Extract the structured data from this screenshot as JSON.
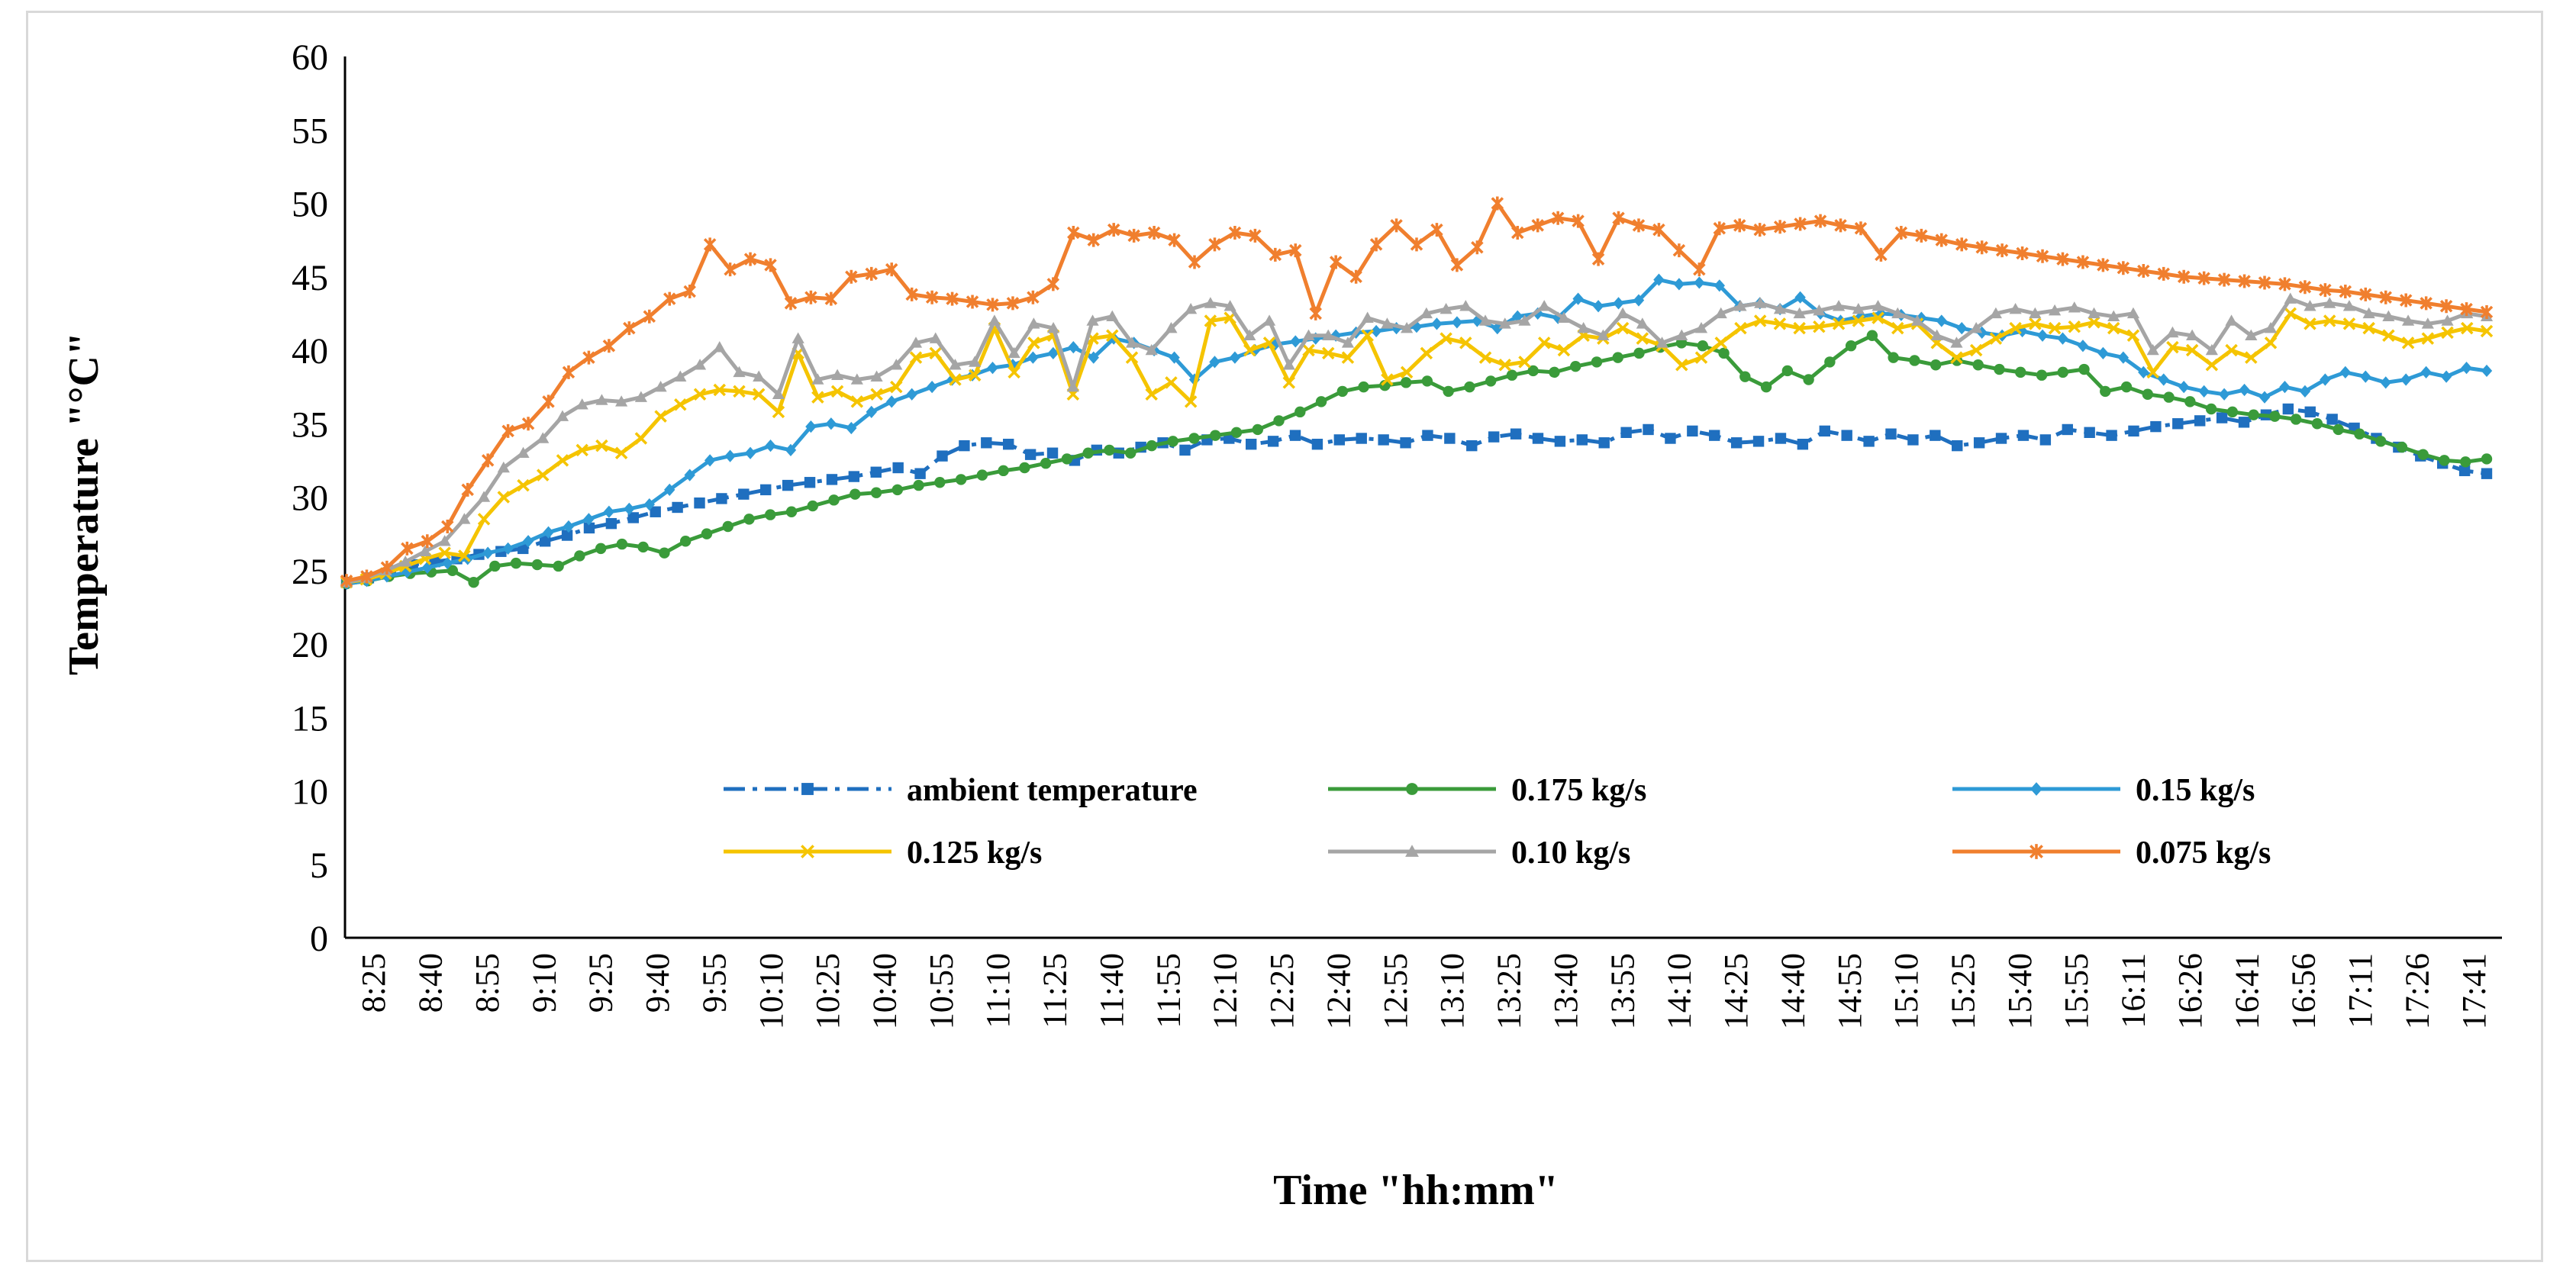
{
  "chart_data": {
    "type": "line",
    "title": "",
    "xlabel": "Time \"hh:mm\"",
    "ylabel": "Temperature \"°C\"",
    "ylim": [
      0,
      60
    ],
    "yticks": [
      0,
      5,
      10,
      15,
      20,
      25,
      30,
      35,
      40,
      45,
      50,
      55,
      60
    ],
    "grid": false,
    "legend_position": "bottom-center",
    "x_tick_labels": [
      "8:25",
      "8:40",
      "8:55",
      "9:10",
      "9:25",
      "9:40",
      "9:55",
      "10:10",
      "10:25",
      "10:40",
      "10:55",
      "11:10",
      "11:25",
      "11:40",
      "11:55",
      "12:10",
      "12:25",
      "12:40",
      "12:55",
      "13:10",
      "13:25",
      "13:40",
      "13:55",
      "14:10",
      "14:25",
      "14:40",
      "14:55",
      "15:10",
      "15:25",
      "15:40",
      "15:55",
      "16:11",
      "16:26",
      "16:41",
      "16:56",
      "17:11",
      "17:26",
      "17:41"
    ],
    "series": [
      {
        "name": "ambient temperature",
        "color": "#1f6fbf",
        "marker": "square",
        "dash": "dashdot",
        "values": [
          24.2,
          24.5,
          25.0,
          25.4,
          25.6,
          25.8,
          26.1,
          26.3,
          26.5,
          27.0,
          27.4,
          27.9,
          28.2,
          28.6,
          29.0,
          29.3,
          29.6,
          29.9,
          30.2,
          30.5,
          30.8,
          31.0,
          31.2,
          31.4,
          31.7,
          32.0,
          31.6,
          32.8,
          33.5,
          33.7,
          33.6,
          32.9,
          33.0,
          32.5,
          33.2,
          33.0,
          33.4,
          33.7,
          33.2,
          33.9,
          34.0,
          33.6,
          33.8,
          34.2,
          33.6,
          33.9,
          34.0,
          33.9,
          33.7,
          34.2,
          34.0,
          33.5,
          34.1,
          34.3,
          34.0,
          33.8,
          33.9,
          33.7,
          34.4,
          34.6,
          34.0,
          34.5,
          34.2,
          33.7,
          33.8,
          34.0,
          33.6,
          34.5,
          34.2,
          33.8,
          34.3,
          33.9,
          34.2,
          33.5,
          33.7,
          34.0,
          34.2,
          33.9,
          34.6,
          34.4,
          34.2,
          34.5,
          34.8,
          35.0,
          35.2,
          35.4,
          35.1,
          35.6,
          36.0,
          35.8,
          35.3,
          34.7,
          34.0,
          33.4,
          32.8,
          32.3,
          31.8,
          31.6
        ]
      },
      {
        "name": "0.175 kg/s",
        "color": "#3a9b3a",
        "marker": "circle",
        "dash": "solid",
        "values": [
          24.1,
          24.3,
          24.6,
          24.8,
          24.9,
          25.0,
          24.2,
          25.3,
          25.5,
          25.4,
          25.3,
          26.0,
          26.5,
          26.8,
          26.6,
          26.2,
          27.0,
          27.5,
          28.0,
          28.5,
          28.8,
          29.0,
          29.4,
          29.8,
          30.2,
          30.3,
          30.5,
          30.8,
          31.0,
          31.2,
          31.5,
          31.8,
          32.0,
          32.3,
          32.6,
          33.0,
          33.2,
          33.0,
          33.5,
          33.8,
          34.0,
          34.2,
          34.4,
          34.6,
          35.2,
          35.8,
          36.5,
          37.2,
          37.5,
          37.6,
          37.8,
          37.9,
          37.2,
          37.5,
          37.9,
          38.3,
          38.6,
          38.5,
          38.9,
          39.2,
          39.5,
          39.8,
          40.2,
          40.5,
          40.3,
          39.8,
          38.2,
          37.5,
          38.6,
          38.0,
          39.2,
          40.3,
          41.0,
          39.5,
          39.3,
          39.0,
          39.3,
          39.0,
          38.7,
          38.5,
          38.3,
          38.5,
          38.7,
          37.2,
          37.5,
          37.0,
          36.8,
          36.5,
          36.0,
          35.8,
          35.6,
          35.5,
          35.3,
          35.0,
          34.6,
          34.3,
          33.8,
          33.4,
          32.9,
          32.5,
          32.4,
          32.6
        ]
      },
      {
        "name": "0.15 kg/s",
        "color": "#2e9ad6",
        "marker": "diamond",
        "dash": "solid",
        "values": [
          24.1,
          24.3,
          24.6,
          24.9,
          25.2,
          25.5,
          25.8,
          26.2,
          26.5,
          27.0,
          27.6,
          28.0,
          28.5,
          29.0,
          29.2,
          29.5,
          30.5,
          31.5,
          32.5,
          32.8,
          33.0,
          33.5,
          33.2,
          34.8,
          35.0,
          34.7,
          35.8,
          36.5,
          37.0,
          37.5,
          38.0,
          38.3,
          38.8,
          39.0,
          39.5,
          39.8,
          40.2,
          39.5,
          40.8,
          40.5,
          40.0,
          39.5,
          38.0,
          39.2,
          39.5,
          40.0,
          40.4,
          40.6,
          40.8,
          41.0,
          41.2,
          41.3,
          41.5,
          41.6,
          41.8,
          41.9,
          42.0,
          41.5,
          42.3,
          42.5,
          42.2,
          43.5,
          43.0,
          43.2,
          43.4,
          44.8,
          44.5,
          44.6,
          44.4,
          43.0,
          43.2,
          42.8,
          43.6,
          42.5,
          42.0,
          42.3,
          42.5,
          42.4,
          42.2,
          42.0,
          41.5,
          41.2,
          41.0,
          41.3,
          41.0,
          40.8,
          40.3,
          39.8,
          39.5,
          38.5,
          38.0,
          37.5,
          37.2,
          37.0,
          37.3,
          36.8,
          37.5,
          37.2,
          38.0,
          38.5,
          38.2,
          37.8,
          38.0,
          38.5,
          38.2,
          38.8,
          38.6
        ]
      },
      {
        "name": "0.125 kg/s",
        "color": "#f5c400",
        "marker": "x",
        "dash": "solid",
        "values": [
          24.2,
          24.4,
          24.8,
          25.3,
          25.8,
          26.2,
          26.0,
          28.5,
          30.0,
          30.8,
          31.5,
          32.5,
          33.2,
          33.5,
          33.0,
          34.0,
          35.5,
          36.3,
          37.0,
          37.3,
          37.2,
          37.0,
          35.8,
          39.8,
          36.8,
          37.2,
          36.5,
          37.0,
          37.5,
          39.5,
          39.8,
          38.0,
          38.3,
          41.5,
          38.5,
          40.5,
          41.0,
          37.0,
          40.8,
          41.0,
          39.5,
          37.0,
          37.8,
          36.5,
          42.0,
          42.2,
          40.0,
          40.5,
          37.8,
          40.0,
          39.8,
          39.5,
          41.0,
          38.0,
          38.5,
          39.8,
          40.8,
          40.5,
          39.5,
          39.0,
          39.2,
          40.5,
          40.0,
          41.0,
          40.8,
          41.5,
          40.8,
          40.3,
          39.0,
          39.5,
          40.5,
          41.5,
          42.0,
          41.8,
          41.5,
          41.6,
          41.8,
          42.0,
          42.2,
          41.5,
          41.8,
          40.5,
          39.5,
          40.0,
          40.8,
          41.5,
          41.8,
          41.5,
          41.6,
          41.9,
          41.5,
          41.0,
          38.5,
          40.2,
          40.0,
          39.0,
          40.0,
          39.5,
          40.5,
          42.5,
          41.8,
          42.0,
          41.8,
          41.5,
          41.0,
          40.5,
          40.8,
          41.2,
          41.5,
          41.3
        ]
      },
      {
        "name": "0.10 kg/s",
        "color": "#a5a5a5",
        "marker": "triangle",
        "dash": "solid",
        "values": [
          24.2,
          24.5,
          25.0,
          25.6,
          26.3,
          27.0,
          28.5,
          30.0,
          32.0,
          33.0,
          34.0,
          35.5,
          36.3,
          36.6,
          36.5,
          36.8,
          37.5,
          38.2,
          39.0,
          40.2,
          38.5,
          38.2,
          37.0,
          40.8,
          38.0,
          38.3,
          38.0,
          38.2,
          39.0,
          40.5,
          40.8,
          39.0,
          39.2,
          42.0,
          39.8,
          41.8,
          41.5,
          37.5,
          42.0,
          42.3,
          40.5,
          40.0,
          41.5,
          42.8,
          43.2,
          43.0,
          41.0,
          42.0,
          39.0,
          41.0,
          41.0,
          40.5,
          42.2,
          41.8,
          41.5,
          42.5,
          42.8,
          43.0,
          42.0,
          41.8,
          42.0,
          43.0,
          42.2,
          41.5,
          41.0,
          42.5,
          41.8,
          40.5,
          41.0,
          41.5,
          42.5,
          43.0,
          43.2,
          42.8,
          42.5,
          42.7,
          43.0,
          42.8,
          43.0,
          42.5,
          42.0,
          41.0,
          40.5,
          41.5,
          42.5,
          42.8,
          42.5,
          42.7,
          42.9,
          42.5,
          42.3,
          42.5,
          40.0,
          41.2,
          41.0,
          40.0,
          42.0,
          41.0,
          41.5,
          43.5,
          43.0,
          43.2,
          43.0,
          42.5,
          42.3,
          42.0,
          41.8,
          42.0,
          42.5,
          42.3
        ]
      },
      {
        "name": "0.075 kg/s",
        "color": "#f07f2e",
        "marker": "asterisk",
        "dash": "solid",
        "values": [
          24.3,
          24.6,
          25.2,
          26.5,
          27.0,
          28.0,
          30.5,
          32.5,
          34.5,
          35.0,
          36.5,
          38.5,
          39.5,
          40.3,
          41.5,
          42.3,
          43.5,
          44.0,
          47.2,
          45.5,
          46.2,
          45.8,
          43.2,
          43.6,
          43.5,
          45.0,
          45.2,
          45.5,
          43.8,
          43.6,
          43.5,
          43.3,
          43.1,
          43.2,
          43.6,
          44.5,
          48.0,
          47.5,
          48.2,
          47.8,
          48.0,
          47.5,
          46.0,
          47.2,
          48.0,
          47.8,
          46.5,
          46.8,
          42.5,
          46.0,
          45.0,
          47.2,
          48.5,
          47.2,
          48.2,
          45.8,
          47.0,
          50.0,
          48.0,
          48.5,
          49.0,
          48.8,
          46.2,
          49.0,
          48.5,
          48.2,
          46.8,
          45.5,
          48.3,
          48.5,
          48.2,
          48.4,
          48.6,
          48.8,
          48.5,
          48.3,
          46.5,
          48.0,
          47.8,
          47.5,
          47.2,
          47.0,
          46.8,
          46.6,
          46.4,
          46.2,
          46.0,
          45.8,
          45.6,
          45.4,
          45.2,
          45.0,
          44.9,
          44.8,
          44.7,
          44.6,
          44.5,
          44.3,
          44.1,
          44.0,
          43.8,
          43.6,
          43.4,
          43.2,
          43.0,
          42.8,
          42.6
        ]
      }
    ]
  }
}
